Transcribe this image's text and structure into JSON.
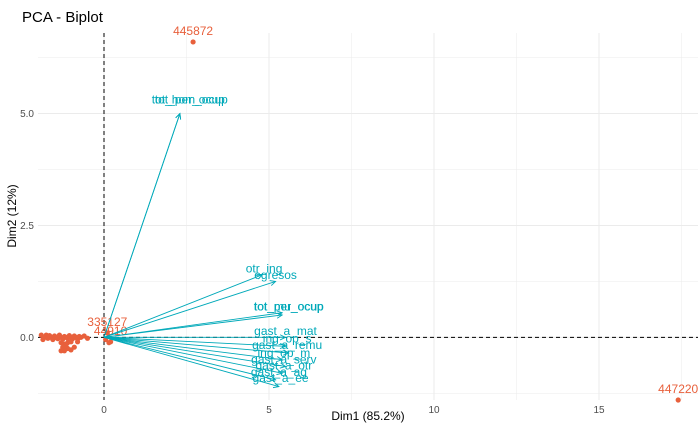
{
  "chart_data": {
    "type": "scatter",
    "title": "PCA - Biplot",
    "xlabel": "Dim1 (85.2%)",
    "ylabel": "Dim2 (12%)",
    "xlim": [
      -2.0,
      18.0
    ],
    "ylim": [
      -1.4,
      6.8
    ],
    "x_ticks": [
      0,
      5,
      10,
      15
    ],
    "y_ticks": [
      0.0,
      2.5,
      5.0
    ],
    "grid": true,
    "colors": {
      "points": "#e8603c",
      "arrows": "#00a9b9",
      "grid": "#ebebeb",
      "ref_line": "#000000"
    },
    "labeled_points": [
      {
        "label": "445872",
        "x": 2.7,
        "y": 6.6
      },
      {
        "label": "447220",
        "x": 17.4,
        "y": -1.4
      },
      {
        "label": "335127",
        "x": 0.1,
        "y": 0.1
      },
      {
        "label": "44910",
        "x": 0.2,
        "y": -0.1
      }
    ],
    "cluster_points": [
      {
        "x": -1.9,
        "y": 0.05
      },
      {
        "x": -1.85,
        "y": -0.05
      },
      {
        "x": -1.8,
        "y": 0.0
      },
      {
        "x": -1.75,
        "y": 0.05
      },
      {
        "x": -1.7,
        "y": -0.02
      },
      {
        "x": -1.65,
        "y": 0.04
      },
      {
        "x": -1.6,
        "y": 0.0
      },
      {
        "x": -1.55,
        "y": -0.05
      },
      {
        "x": -1.5,
        "y": 0.03
      },
      {
        "x": -1.45,
        "y": 0.0
      },
      {
        "x": -1.4,
        "y": -0.03
      },
      {
        "x": -1.35,
        "y": 0.05
      },
      {
        "x": -1.3,
        "y": 0.0
      },
      {
        "x": -1.25,
        "y": -0.04
      },
      {
        "x": -1.2,
        "y": 0.02
      },
      {
        "x": -1.15,
        "y": 0.0
      },
      {
        "x": -1.1,
        "y": -0.02
      },
      {
        "x": -1.05,
        "y": 0.04
      },
      {
        "x": -1.0,
        "y": 0.0
      },
      {
        "x": -0.95,
        "y": -0.03
      },
      {
        "x": -0.9,
        "y": 0.03
      },
      {
        "x": -0.85,
        "y": 0.0
      },
      {
        "x": -0.8,
        "y": -0.04
      },
      {
        "x": -0.75,
        "y": 0.02
      },
      {
        "x": -0.7,
        "y": 0.0
      },
      {
        "x": -0.6,
        "y": 0.03
      },
      {
        "x": -0.5,
        "y": -0.02
      },
      {
        "x": -1.3,
        "y": -0.12
      },
      {
        "x": -1.2,
        "y": -0.15
      },
      {
        "x": -1.1,
        "y": -0.12
      },
      {
        "x": -1.0,
        "y": -0.1
      },
      {
        "x": -1.25,
        "y": -0.22
      },
      {
        "x": -1.1,
        "y": -0.25
      },
      {
        "x": -1.15,
        "y": -0.2
      },
      {
        "x": -1.3,
        "y": -0.3
      },
      {
        "x": -1.2,
        "y": -0.3
      },
      {
        "x": -1.0,
        "y": -0.28
      },
      {
        "x": -0.9,
        "y": -0.22
      },
      {
        "x": -0.8,
        "y": -0.1
      },
      {
        "x": 0.05,
        "y": -0.05
      },
      {
        "x": 0.15,
        "y": -0.12
      }
    ],
    "variables": [
      {
        "name": "tot_hom_ocup",
        "x": 2.3,
        "y": 5.0
      },
      {
        "name": "tot_per_ocup",
        "x": 2.3,
        "y": 5.0
      },
      {
        "name": "otr_ing",
        "x": 4.8,
        "y": 1.4
      },
      {
        "name": "egresos",
        "x": 5.2,
        "y": 1.25
      },
      {
        "name": "tot_mu_ocup",
        "x": 5.4,
        "y": 0.5
      },
      {
        "name": "tot_per_ocup",
        "x": 5.4,
        "y": 0.55
      },
      {
        "name": "gast_a_mat",
        "x": 5.5,
        "y": 0.0
      },
      {
        "name": "ing_op_s",
        "x": 5.5,
        "y": -0.2
      },
      {
        "name": "gast_a_remu",
        "x": 5.6,
        "y": -0.35
      },
      {
        "name": "ing_op_m",
        "x": 5.4,
        "y": -0.5
      },
      {
        "name": "gast_a_serv",
        "x": 5.5,
        "y": -0.65
      },
      {
        "name": "gast_a_otr",
        "x": 5.4,
        "y": -0.8
      },
      {
        "name": "gast_a_ag",
        "x": 5.2,
        "y": -0.95
      },
      {
        "name": "gast_a_ee",
        "x": 5.3,
        "y": -1.1
      }
    ],
    "variable_labels": [
      {
        "text": "tot_hom_ocup",
        "x": 2.6,
        "y": 5.22
      },
      {
        "text": "tot_per_ocup",
        "x": 2.6,
        "y": 5.22
      },
      {
        "text": "otr_ing",
        "x": 4.85,
        "y": 1.45
      },
      {
        "text": "egresos",
        "x": 5.2,
        "y": 1.3
      },
      {
        "text": "tot_mu_ocup",
        "x": 5.6,
        "y": 0.6
      },
      {
        "text": "tot_per_ocup",
        "x": 5.6,
        "y": 0.6
      },
      {
        "text": "gast_a_mat",
        "x": 5.5,
        "y": 0.05
      },
      {
        "text": "ing_op_s",
        "x": 5.55,
        "y": -0.12
      },
      {
        "text": "gast_a_remu",
        "x": 5.55,
        "y": -0.26
      },
      {
        "text": "ing_op_m",
        "x": 5.45,
        "y": -0.44
      },
      {
        "text": "gast_a_serv",
        "x": 5.45,
        "y": -0.58
      },
      {
        "text": "gast_a_otr",
        "x": 5.45,
        "y": -0.72
      },
      {
        "text": "gast_a_ag",
        "x": 5.3,
        "y": -0.86
      },
      {
        "text": "gast_a_ee",
        "x": 5.35,
        "y": -1.0
      }
    ]
  }
}
